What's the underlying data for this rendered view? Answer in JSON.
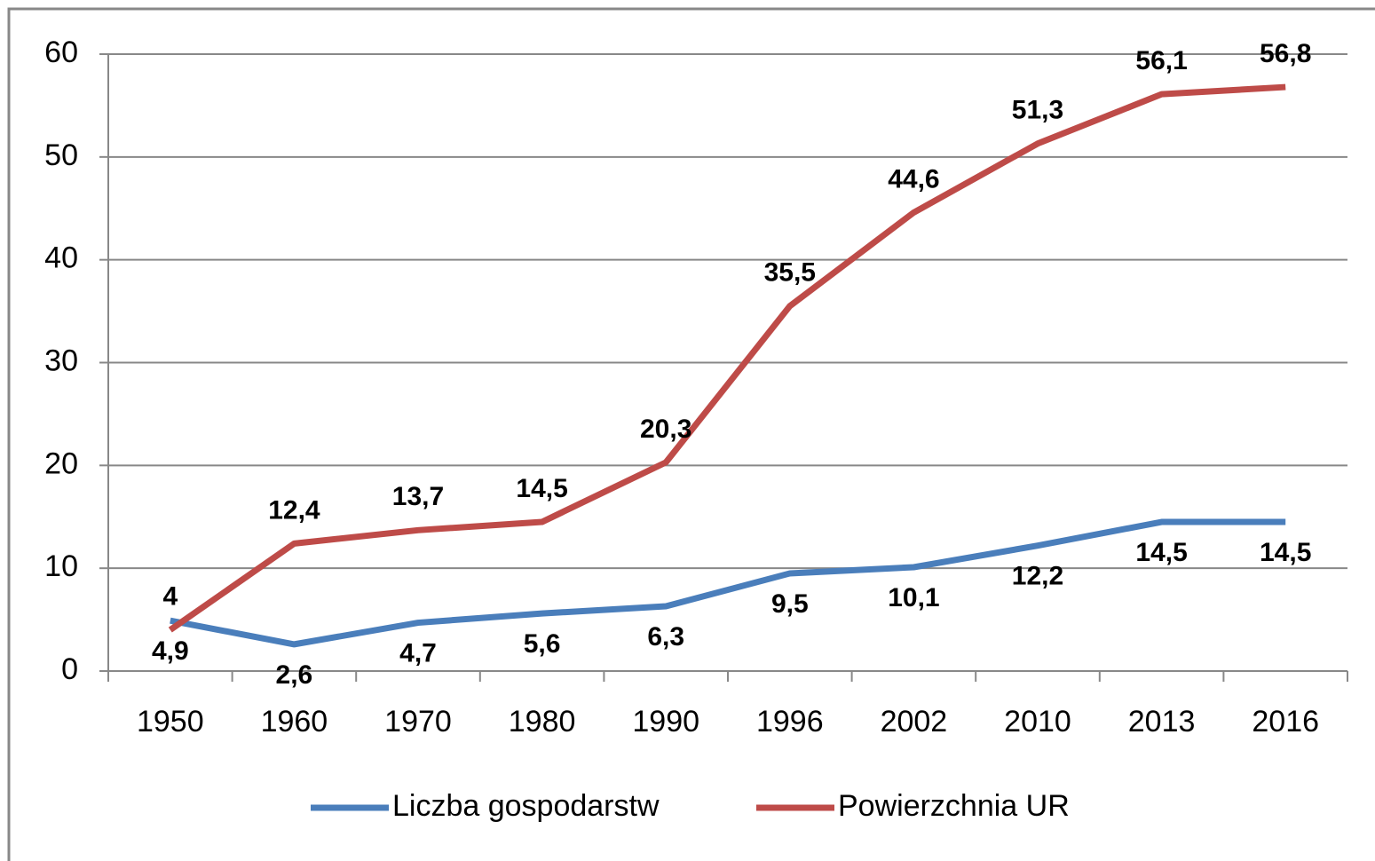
{
  "chart_data": {
    "type": "line",
    "categories": [
      "1950",
      "1960",
      "1970",
      "1980",
      "1990",
      "1996",
      "2002",
      "2010",
      "2013",
      "2016"
    ],
    "series": [
      {
        "name": "Liczba gospodarstw",
        "color": "#4a7ebb",
        "values": [
          4.9,
          2.6,
          4.7,
          5.6,
          6.3,
          9.5,
          10.1,
          12.2,
          14.5,
          14.5
        ],
        "value_labels": [
          "4,9",
          "2,6",
          "4,7",
          "5,6",
          "6,3",
          "9,5",
          "10,1",
          "12,2",
          "14,5",
          "14,5"
        ]
      },
      {
        "name": "Powierzchnia UR",
        "color": "#be4b48",
        "values": [
          4,
          12.4,
          13.7,
          14.5,
          20.3,
          35.5,
          44.6,
          51.3,
          56.1,
          56.8
        ],
        "value_labels": [
          "4",
          "12,4",
          "13,7",
          "14,5",
          "20,3",
          "35,5",
          "44,6",
          "51,3",
          "56,1",
          "56,8"
        ]
      }
    ],
    "ylim": [
      0,
      60
    ],
    "yticks": [
      0,
      10,
      20,
      30,
      40,
      50,
      60
    ],
    "grid": true,
    "legend": "bottom"
  }
}
